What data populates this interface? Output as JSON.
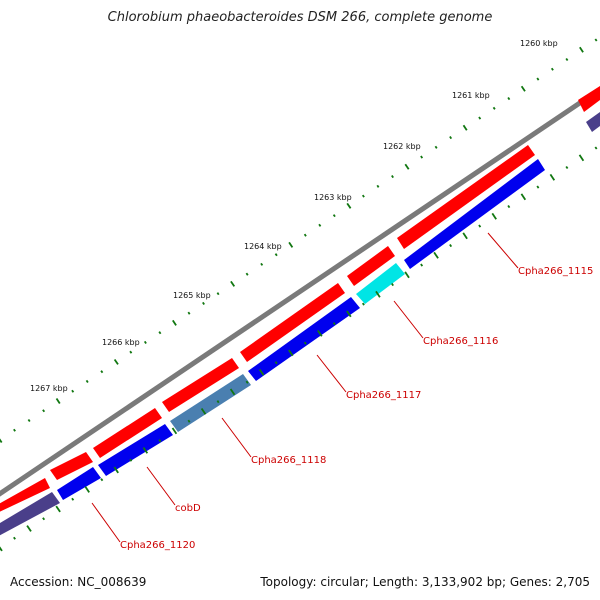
{
  "title": "Chlorobium phaeobacteroides DSM 266, complete genome",
  "accession": "Accession: NC_008639",
  "summary": "Topology: circular; Length: 3,133,902 bp; Genes: 2,705",
  "colors": {
    "backbone": "#8a8a8a",
    "forward_gene": "#ff0000",
    "reverse_gene": "#0000ee",
    "highlight_cyan": "#00e5e5",
    "highlight_steel": "#4a7fb0",
    "reverse_dark": "#4a3f8a",
    "tick": "#117711",
    "label": "#cc0000"
  },
  "kbp_marks": [
    {
      "label": "1260 kbp"
    },
    {
      "label": "1261 kbp"
    },
    {
      "label": "1262 kbp"
    },
    {
      "label": "1263 kbp"
    },
    {
      "label": "1264 kbp"
    },
    {
      "label": "1265 kbp"
    },
    {
      "label": "1266 kbp"
    },
    {
      "label": "1267 kbp"
    }
  ],
  "gene_labels": [
    {
      "label": "Cpha266_1115"
    },
    {
      "label": "Cpha266_1116"
    },
    {
      "label": "Cpha266_1117"
    },
    {
      "label": "Cpha266_1118"
    },
    {
      "label": "cobD"
    },
    {
      "label": "Cpha266_1120"
    }
  ]
}
